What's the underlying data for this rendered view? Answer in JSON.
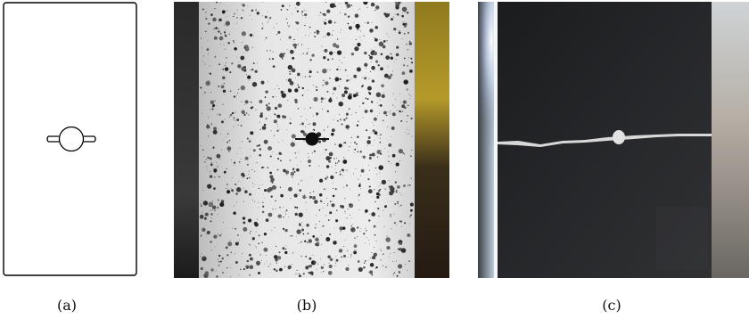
{
  "captions": {
    "a": "(a)",
    "b": "(b)",
    "c": "(c)"
  },
  "colors": {
    "specimen_outline": "#000000",
    "speckle_base": "#e9e9e9",
    "speckle_dark": "#2b2b2b",
    "background_dark": "#1a1a1a",
    "yellow_wall": "#b59a2a",
    "black_specimen": "#222222",
    "crack": "#d9d9d9"
  }
}
